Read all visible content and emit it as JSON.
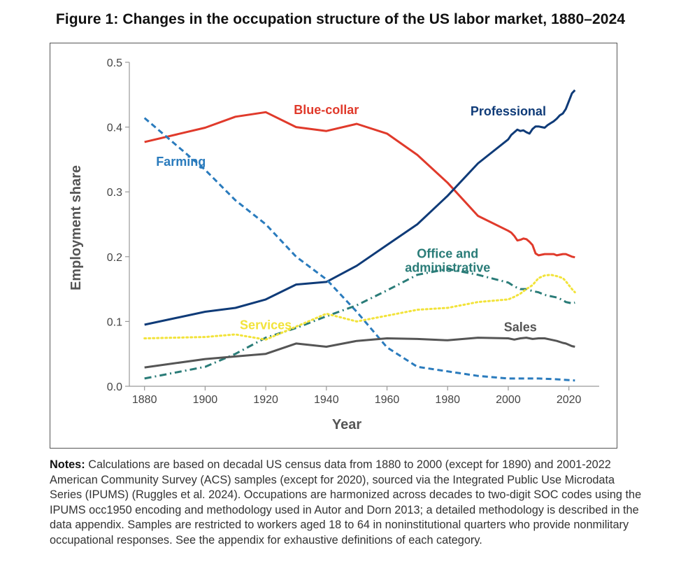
{
  "figure": {
    "title": "Figure 1: Changes in the occupation structure of the US labor market, 1880–2024"
  },
  "notes": {
    "label": "Notes:",
    "text": "Calculations are based on decadal US census data from 1880 to 2000 (except for 1890) and 2001-2022 American Community Survey (ACS) samples (except for 2020), sourced via the Integrated Public Use Microdata Series (IPUMS) (Ruggles et al. 2024). Occupations are harmonized across decades to two-digit SOC codes using the IPUMS occ1950 encoding and methodology used in Autor and Dorn 2013; a detailed methodology is described in the data appendix. Samples are restricted to workers aged 18 to 64 in noninstitutional quarters who provide nonmilitary occupational responses. See the appendix for exhaustive definitions of each category."
  },
  "chart_data": {
    "type": "line",
    "xlabel": "Year",
    "ylabel": "Employment share",
    "xlim": [
      1875,
      2030
    ],
    "ylim": [
      0,
      0.5
    ],
    "x_ticks": [
      1880,
      1900,
      1920,
      1940,
      1960,
      1980,
      2000,
      2020
    ],
    "x_tick_labels": [
      "1880",
      "1900",
      "1920",
      "1940",
      "1960",
      "1980",
      "2000",
      "2020"
    ],
    "y_ticks": [
      0,
      0.1,
      0.2,
      0.3,
      0.4,
      0.5
    ],
    "y_tick_labels": [
      "0.0",
      "0.1",
      "0.2",
      "0.3",
      "0.4",
      "0.5"
    ],
    "grid": false,
    "series": [
      {
        "name": "Blue-collar",
        "color": "#e03a2b",
        "style": "solid",
        "label_anchor": [
          1940,
          0.42
        ],
        "points": [
          [
            1880,
            0.377
          ],
          [
            1900,
            0.399
          ],
          [
            1910,
            0.416
          ],
          [
            1920,
            0.423
          ],
          [
            1930,
            0.4
          ],
          [
            1940,
            0.394
          ],
          [
            1950,
            0.405
          ],
          [
            1960,
            0.39
          ],
          [
            1970,
            0.357
          ],
          [
            1980,
            0.314
          ],
          [
            1990,
            0.263
          ],
          [
            2000,
            0.24
          ],
          [
            2001,
            0.237
          ],
          [
            2002,
            0.232
          ],
          [
            2003,
            0.225
          ],
          [
            2004,
            0.226
          ],
          [
            2005,
            0.228
          ],
          [
            2006,
            0.227
          ],
          [
            2007,
            0.223
          ],
          [
            2008,
            0.218
          ],
          [
            2009,
            0.205
          ],
          [
            2010,
            0.202
          ],
          [
            2011,
            0.203
          ],
          [
            2012,
            0.204
          ],
          [
            2013,
            0.204
          ],
          [
            2014,
            0.204
          ],
          [
            2015,
            0.204
          ],
          [
            2016,
            0.202
          ],
          [
            2017,
            0.203
          ],
          [
            2018,
            0.204
          ],
          [
            2019,
            0.204
          ],
          [
            2021,
            0.2
          ],
          [
            2022,
            0.199
          ]
        ]
      },
      {
        "name": "Professional",
        "color": "#0f3b78",
        "style": "solid",
        "label_anchor": [
          2000,
          0.418
        ],
        "points": [
          [
            1880,
            0.095
          ],
          [
            1900,
            0.115
          ],
          [
            1910,
            0.121
          ],
          [
            1920,
            0.134
          ],
          [
            1930,
            0.157
          ],
          [
            1940,
            0.161
          ],
          [
            1950,
            0.186
          ],
          [
            1960,
            0.218
          ],
          [
            1970,
            0.25
          ],
          [
            1980,
            0.294
          ],
          [
            1990,
            0.344
          ],
          [
            2000,
            0.381
          ],
          [
            2001,
            0.388
          ],
          [
            2002,
            0.392
          ],
          [
            2003,
            0.396
          ],
          [
            2004,
            0.394
          ],
          [
            2005,
            0.395
          ],
          [
            2006,
            0.392
          ],
          [
            2007,
            0.39
          ],
          [
            2008,
            0.397
          ],
          [
            2009,
            0.401
          ],
          [
            2010,
            0.401
          ],
          [
            2011,
            0.4
          ],
          [
            2012,
            0.399
          ],
          [
            2013,
            0.403
          ],
          [
            2014,
            0.406
          ],
          [
            2015,
            0.409
          ],
          [
            2016,
            0.413
          ],
          [
            2017,
            0.418
          ],
          [
            2018,
            0.421
          ],
          [
            2019,
            0.428
          ],
          [
            2021,
            0.452
          ],
          [
            2022,
            0.457
          ]
        ]
      },
      {
        "name": "Farming",
        "color": "#2a7bbd",
        "style": "dashed",
        "label_anchor": [
          1892,
          0.34
        ],
        "points": [
          [
            1880,
            0.414
          ],
          [
            1900,
            0.334
          ],
          [
            1910,
            0.287
          ],
          [
            1920,
            0.25
          ],
          [
            1930,
            0.2
          ],
          [
            1940,
            0.165
          ],
          [
            1950,
            0.115
          ],
          [
            1960,
            0.06
          ],
          [
            1970,
            0.03
          ],
          [
            1980,
            0.023
          ],
          [
            1990,
            0.016
          ],
          [
            2000,
            0.012
          ],
          [
            2005,
            0.012
          ],
          [
            2010,
            0.012
          ],
          [
            2015,
            0.011
          ],
          [
            2022,
            0.009
          ]
        ]
      },
      {
        "name": "Office and administrative",
        "color": "#2a7c78",
        "style": "dashdot",
        "label_anchor": [
          1980,
          0.198
        ],
        "label_lines": [
          "Office and",
          "administrative"
        ],
        "points": [
          [
            1880,
            0.012
          ],
          [
            1900,
            0.03
          ],
          [
            1910,
            0.05
          ],
          [
            1920,
            0.075
          ],
          [
            1930,
            0.09
          ],
          [
            1940,
            0.108
          ],
          [
            1950,
            0.125
          ],
          [
            1960,
            0.148
          ],
          [
            1970,
            0.172
          ],
          [
            1980,
            0.181
          ],
          [
            1990,
            0.172
          ],
          [
            2000,
            0.16
          ],
          [
            2002,
            0.154
          ],
          [
            2004,
            0.15
          ],
          [
            2006,
            0.15
          ],
          [
            2008,
            0.147
          ],
          [
            2010,
            0.145
          ],
          [
            2012,
            0.141
          ],
          [
            2014,
            0.139
          ],
          [
            2016,
            0.137
          ],
          [
            2018,
            0.133
          ],
          [
            2019,
            0.13
          ],
          [
            2021,
            0.128
          ],
          [
            2022,
            0.129
          ]
        ]
      },
      {
        "name": "Services",
        "color": "#f2e33a",
        "style": "dotted",
        "label_anchor": [
          1920,
          0.088
        ],
        "points": [
          [
            1880,
            0.074
          ],
          [
            1900,
            0.076
          ],
          [
            1910,
            0.08
          ],
          [
            1920,
            0.072
          ],
          [
            1930,
            0.092
          ],
          [
            1940,
            0.112
          ],
          [
            1950,
            0.1
          ],
          [
            1960,
            0.109
          ],
          [
            1970,
            0.118
          ],
          [
            1980,
            0.121
          ],
          [
            1990,
            0.13
          ],
          [
            2000,
            0.134
          ],
          [
            2002,
            0.138
          ],
          [
            2004,
            0.143
          ],
          [
            2006,
            0.15
          ],
          [
            2008,
            0.156
          ],
          [
            2010,
            0.167
          ],
          [
            2012,
            0.171
          ],
          [
            2014,
            0.172
          ],
          [
            2016,
            0.17
          ],
          [
            2018,
            0.167
          ],
          [
            2019,
            0.162
          ],
          [
            2021,
            0.15
          ],
          [
            2022,
            0.145
          ]
        ]
      },
      {
        "name": "Sales",
        "color": "#555555",
        "style": "solid",
        "label_anchor": [
          2004,
          0.085
        ],
        "points": [
          [
            1880,
            0.029
          ],
          [
            1900,
            0.042
          ],
          [
            1910,
            0.046
          ],
          [
            1920,
            0.05
          ],
          [
            1930,
            0.066
          ],
          [
            1940,
            0.061
          ],
          [
            1950,
            0.07
          ],
          [
            1960,
            0.074
          ],
          [
            1970,
            0.073
          ],
          [
            1980,
            0.071
          ],
          [
            1990,
            0.075
          ],
          [
            2000,
            0.074
          ],
          [
            2002,
            0.072
          ],
          [
            2004,
            0.074
          ],
          [
            2006,
            0.075
          ],
          [
            2008,
            0.073
          ],
          [
            2010,
            0.074
          ],
          [
            2012,
            0.074
          ],
          [
            2014,
            0.072
          ],
          [
            2016,
            0.07
          ],
          [
            2018,
            0.067
          ],
          [
            2019,
            0.066
          ],
          [
            2021,
            0.062
          ],
          [
            2022,
            0.061
          ]
        ]
      }
    ]
  }
}
